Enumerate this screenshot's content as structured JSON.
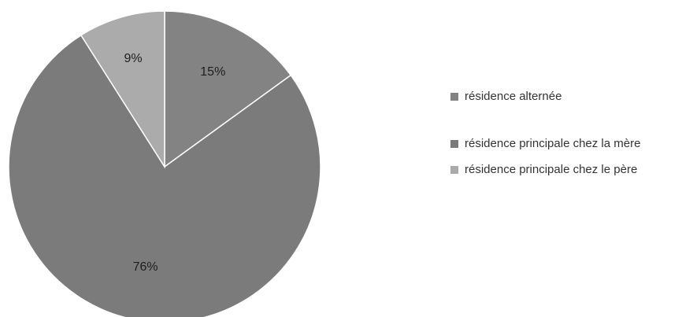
{
  "chart_data": {
    "type": "pie",
    "slices": [
      {
        "label": "résidence alternée",
        "value": 15,
        "value_label": "15%",
        "color": "#838383"
      },
      {
        "label": "résidence principale chez la mère",
        "value": 76,
        "value_label": "76%",
        "color": "#7b7b7b"
      },
      {
        "label": "résidence principale chez le père",
        "value": 9,
        "value_label": "9%",
        "color": "#ababab"
      }
    ],
    "start_angle_deg": 0,
    "direction": "clockwise",
    "legend_position": "right",
    "legend": [
      {
        "label": "résidence alternée",
        "color": "#838383"
      },
      {
        "label": "résidence principale chez la mère",
        "color": "#7b7b7b"
      },
      {
        "label": "résidence principale chez le père",
        "color": "#ababab"
      }
    ]
  }
}
